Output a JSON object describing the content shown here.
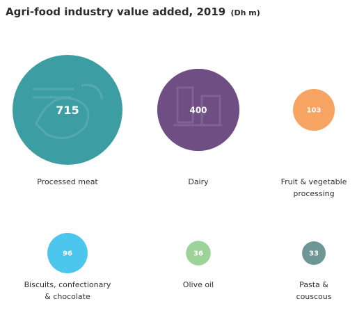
{
  "title": "Agri-food industry value added, 2019",
  "unit": "(Dh m)",
  "chart_data": {
    "type": "bubble",
    "title": "Agri-food industry value added, 2019",
    "unit": "Dh m",
    "items": [
      {
        "label": [
          "Processed meat"
        ],
        "value": 715,
        "color": "#3c9ea3"
      },
      {
        "label": [
          "Dairy"
        ],
        "value": 400,
        "color": "#6e4e83"
      },
      {
        "label": [
          "Fruit & vegetable",
          "processing"
        ],
        "value": 103,
        "color": "#f7a462"
      },
      {
        "label": [
          "Biscuits, confectionary",
          "& chocolate"
        ],
        "value": 96,
        "color": "#4cc6ec"
      },
      {
        "label": [
          "Olive oil"
        ],
        "value": 36,
        "color": "#9bd399"
      },
      {
        "label": [
          "Pasta &",
          "couscous"
        ],
        "value": 33,
        "color": "#6f9697"
      }
    ]
  }
}
